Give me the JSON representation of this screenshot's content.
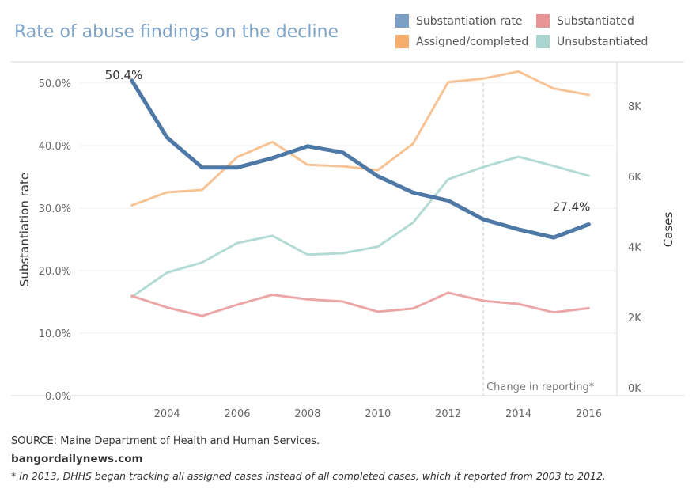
{
  "chart_data": {
    "type": "line",
    "title": "Rate of abuse findings on the decline",
    "x": [
      2003,
      2004,
      2005,
      2006,
      2007,
      2008,
      2009,
      2010,
      2011,
      2012,
      2013,
      2014,
      2015,
      2016
    ],
    "x_ticks": [
      "2004",
      "2006",
      "2008",
      "2010",
      "2012",
      "2014",
      "2016"
    ],
    "xlim": [
      2001.5,
      2016.8
    ],
    "ylabel_left": "Substantiation rate",
    "ylim_left": [
      0,
      0.5
    ],
    "yticks_left": [
      "0.0%",
      "10.0%",
      "20.0%",
      "30.0%",
      "40.0%",
      "50.0%"
    ],
    "ylabel_right": "Cases",
    "ylim_right": [
      0,
      8900
    ],
    "yticks_right": [
      "0K",
      "2K",
      "4K",
      "6K",
      "8K"
    ],
    "grid": true,
    "legend_position": "top-right",
    "series": [
      {
        "name": "Substantiation rate",
        "axis": "left",
        "color": "#4e79a7",
        "values": [
          0.504,
          0.413,
          0.365,
          0.365,
          0.38,
          0.399,
          0.389,
          0.351,
          0.325,
          0.312,
          0.282,
          0.266,
          0.253,
          0.274
        ]
      },
      {
        "name": "Assigned/completed",
        "axis": "right",
        "color": "#f7c394",
        "values": [
          5180,
          5550,
          5620,
          6550,
          6980,
          6330,
          6290,
          6180,
          6930,
          8680,
          8780,
          8980,
          8500,
          8320
        ]
      },
      {
        "name": "Unsubstantiated",
        "axis": "right",
        "color": "#b3dbd5",
        "values": [
          2580,
          3270,
          3560,
          4110,
          4320,
          3780,
          3820,
          4010,
          4690,
          5920,
          6270,
          6560,
          6300,
          6020
        ]
      },
      {
        "name": "Substantiated",
        "axis": "right",
        "color": "#eca6a6",
        "values": [
          2610,
          2280,
          2040,
          2360,
          2640,
          2510,
          2450,
          2160,
          2250,
          2700,
          2470,
          2380,
          2140,
          2260
        ]
      }
    ],
    "annotations": [
      {
        "text": "50.4%",
        "series": "Substantiation rate",
        "x": 2003
      },
      {
        "text": "27.4%",
        "series": "Substantiation rate",
        "x": 2016
      },
      {
        "text": "Change in reporting*",
        "x": 2013
      }
    ]
  },
  "legend": [
    {
      "label": "Substantiation rate",
      "color": "#7b9ec4"
    },
    {
      "label": "Substantiated",
      "color": "#e89494"
    },
    {
      "label": "Assigned/completed",
      "color": "#f4ad6a"
    },
    {
      "label": "Unsubstantiated",
      "color": "#a8d5cf"
    }
  ],
  "footer": {
    "source": "SOURCE: Maine Department of Health and Human Services.",
    "site": "bangordailynews.com",
    "note": "* In 2013, DHHS began tracking all assigned cases instead of all completed cases, which it reported from 2003 to 2012."
  }
}
